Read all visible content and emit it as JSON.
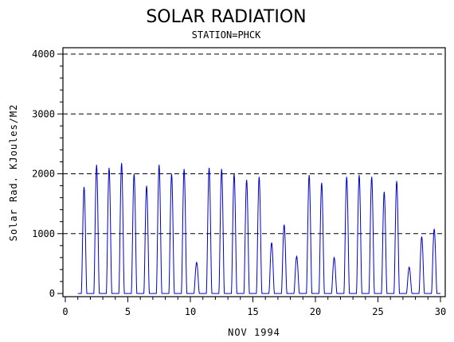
{
  "chart_data": {
    "type": "line",
    "title": "SOLAR RADIATION",
    "subtitle": "STATION=PHCK",
    "xlabel": "NOV 1994",
    "ylabel": "Solar Rad. KJoules/M2",
    "xlim": [
      0,
      30
    ],
    "ylim": [
      0,
      4000
    ],
    "x_ticks": [
      0,
      5,
      10,
      15,
      20,
      25,
      30
    ],
    "y_ticks": [
      0,
      1000,
      2000,
      3000,
      4000
    ],
    "gridlines_y": [
      1000,
      2000,
      3000,
      4000
    ],
    "grid_style": "dashed horizontal",
    "series": [
      {
        "color": "#0000cc",
        "daily_peaks": [
          {
            "day": 1,
            "peak": 1780
          },
          {
            "day": 2,
            "peak": 2150
          },
          {
            "day": 3,
            "peak": 2100
          },
          {
            "day": 4,
            "peak": 2180
          },
          {
            "day": 5,
            "peak": 2000
          },
          {
            "day": 6,
            "peak": 1800
          },
          {
            "day": 7,
            "peak": 2150
          },
          {
            "day": 8,
            "peak": 2000
          },
          {
            "day": 9,
            "peak": 2080
          },
          {
            "day": 10,
            "peak": 520
          },
          {
            "day": 11,
            "peak": 2100
          },
          {
            "day": 12,
            "peak": 2080
          },
          {
            "day": 13,
            "peak": 2000
          },
          {
            "day": 14,
            "peak": 1900
          },
          {
            "day": 15,
            "peak": 1950
          },
          {
            "day": 16,
            "peak": 850
          },
          {
            "day": 17,
            "peak": 1150
          },
          {
            "day": 18,
            "peak": 620
          },
          {
            "day": 19,
            "peak": 1980
          },
          {
            "day": 20,
            "peak": 1850
          },
          {
            "day": 21,
            "peak": 600
          },
          {
            "day": 22,
            "peak": 1950
          },
          {
            "day": 23,
            "peak": 1980
          },
          {
            "day": 24,
            "peak": 1950
          },
          {
            "day": 25,
            "peak": 1700
          },
          {
            "day": 26,
            "peak": 1880
          },
          {
            "day": 27,
            "peak": 440
          },
          {
            "day": 28,
            "peak": 950
          },
          {
            "day": 29,
            "peak": 1080
          }
        ]
      }
    ]
  }
}
